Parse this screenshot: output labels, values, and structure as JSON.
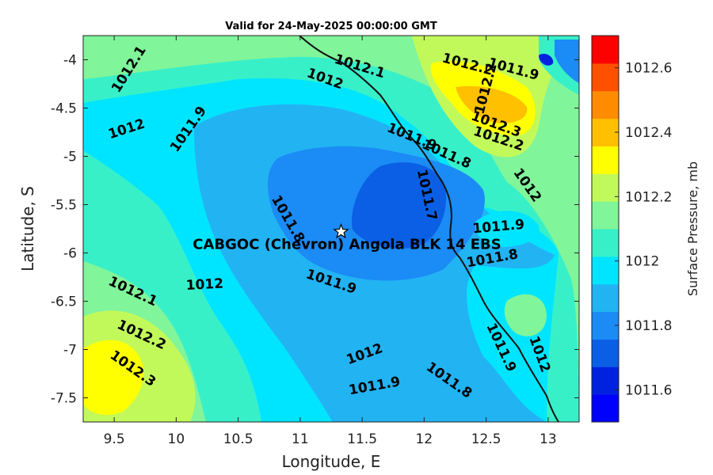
{
  "title": "Valid for 24-May-2025 00:00:00 GMT",
  "xlabel": "Longitude, E",
  "ylabel": "Latitude, S",
  "colorbar": {
    "label": "Surface Pressure, mb",
    "ticks": [
      "1011.6",
      "1011.8",
      "1012",
      "1012.2",
      "1012.4",
      "1012.6"
    ],
    "tick_values": [
      1011.6,
      1011.8,
      1012.0,
      1012.2,
      1012.4,
      1012.6
    ],
    "range": [
      1011.5,
      1012.7
    ],
    "colors": [
      "#0000ff",
      "#0022e0",
      "#0a5fe5",
      "#1b8bf5",
      "#22b3f3",
      "#00e5ff",
      "#38f0c8",
      "#80f59a",
      "#c2f95a",
      "#ffff00",
      "#ffc000",
      "#ff8c00",
      "#ff5000",
      "#ff0000"
    ]
  },
  "site": {
    "label": "CABGOC (Chevron)  Angola BLK 14  EBS",
    "lon": 11.33,
    "lat": -5.78
  },
  "chart_data": {
    "type": "contour",
    "x_ticks": [
      "9.5",
      "10",
      "10.5",
      "11",
      "11.5",
      "12",
      "12.5",
      "13"
    ],
    "x_tick_values": [
      9.5,
      10,
      10.5,
      11,
      11.5,
      12,
      12.5,
      13
    ],
    "y_ticks": [
      "-4",
      "-4.5",
      "-5",
      "-5.5",
      "-6",
      "-6.5",
      "-7",
      "-7.5"
    ],
    "y_tick_values": [
      -4,
      -4.5,
      -5,
      -5.5,
      -6,
      -6.5,
      -7,
      -7.5
    ],
    "xlim": [
      9.25,
      13.25
    ],
    "ylim": [
      -7.75,
      -3.75
    ],
    "contour_labels": [
      {
        "text": "1012.1",
        "lon": 9.62,
        "lat": -4.1,
        "angle": -58
      },
      {
        "text": "1012",
        "lon": 9.6,
        "lat": -4.72,
        "angle": -18
      },
      {
        "text": "1011.9",
        "lon": 10.1,
        "lat": -4.72,
        "angle": -55
      },
      {
        "text": "1012",
        "lon": 11.2,
        "lat": -4.2,
        "angle": 20
      },
      {
        "text": "1012.1",
        "lon": 11.48,
        "lat": -4.07,
        "angle": 17
      },
      {
        "text": "1012.2",
        "lon": 12.35,
        "lat": -4.05,
        "angle": 15
      },
      {
        "text": "1011.9",
        "lon": 12.72,
        "lat": -4.1,
        "angle": 15
      },
      {
        "text": "1012.2",
        "lon": 12.5,
        "lat": -4.3,
        "angle": -75
      },
      {
        "text": "1012.3",
        "lon": 12.58,
        "lat": -4.67,
        "angle": 20
      },
      {
        "text": "1012.2",
        "lon": 12.6,
        "lat": -4.82,
        "angle": 18
      },
      {
        "text": "1011.9",
        "lon": 11.9,
        "lat": -4.8,
        "angle": 22
      },
      {
        "text": "1011.8",
        "lon": 12.18,
        "lat": -4.98,
        "angle": 24
      },
      {
        "text": "1011.7",
        "lon": 12.02,
        "lat": -5.4,
        "angle": 78
      },
      {
        "text": "1012",
        "lon": 12.83,
        "lat": -5.3,
        "angle": 55
      },
      {
        "text": "1011.8",
        "lon": 10.9,
        "lat": -5.65,
        "angle": 60
      },
      {
        "text": "1011.9",
        "lon": 12.6,
        "lat": -5.73,
        "angle": -5
      },
      {
        "text": "1011.8",
        "lon": 12.55,
        "lat": -6.06,
        "angle": -10
      },
      {
        "text": "1012",
        "lon": 10.23,
        "lat": -6.33,
        "angle": -3
      },
      {
        "text": "1012.1",
        "lon": 9.65,
        "lat": -6.4,
        "angle": 25
      },
      {
        "text": "1011.9",
        "lon": 11.25,
        "lat": -6.3,
        "angle": 18
      },
      {
        "text": "1012.2",
        "lon": 9.72,
        "lat": -6.85,
        "angle": 25
      },
      {
        "text": "1012.3",
        "lon": 9.65,
        "lat": -7.2,
        "angle": 35
      },
      {
        "text": "1012",
        "lon": 11.52,
        "lat": -7.05,
        "angle": -20
      },
      {
        "text": "1011.9",
        "lon": 11.6,
        "lat": -7.38,
        "angle": -10
      },
      {
        "text": "1011.8",
        "lon": 12.2,
        "lat": -7.32,
        "angle": 35
      },
      {
        "text": "1011.9",
        "lon": 12.62,
        "lat": -6.98,
        "angle": 65
      },
      {
        "text": "1012",
        "lon": 12.93,
        "lat": -7.05,
        "angle": 70
      }
    ]
  }
}
